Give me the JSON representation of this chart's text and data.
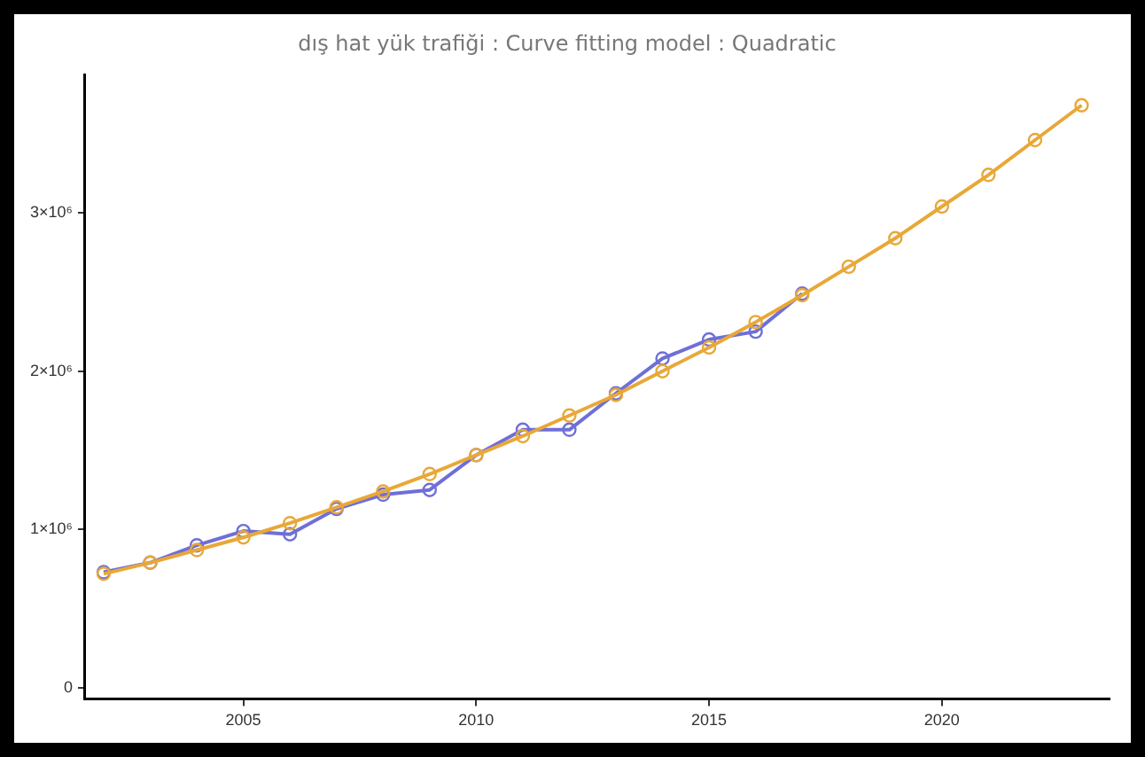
{
  "chart_data": {
    "type": "line",
    "title": "dış hat yük trafiği : Curve fitting model : Quadratic",
    "xlim": [
      2001.6,
      2023.6
    ],
    "xticks": [
      2005,
      2010,
      2015,
      2020
    ],
    "ylim": [
      -70000,
      3870000
    ],
    "yticks": [
      {
        "value": 0,
        "label": "0"
      },
      {
        "value": 1000000,
        "label": "1×10⁶"
      },
      {
        "value": 2000000,
        "label": "2×10⁶"
      },
      {
        "value": 3000000,
        "label": "3×10⁶"
      }
    ],
    "grid": false,
    "legend": false,
    "marker": "circle",
    "line_style": "solid",
    "series": [
      {
        "color": "#6f6fd8",
        "x": [
          2002,
          2003,
          2004,
          2005,
          2006,
          2007,
          2008,
          2009,
          2010,
          2011,
          2012,
          2013,
          2014,
          2015,
          2016,
          2017
        ],
        "values": [
          730000,
          790000,
          900000,
          990000,
          970000,
          1130000,
          1220000,
          1250000,
          1470000,
          1630000,
          1630000,
          1860000,
          2080000,
          2200000,
          2250000,
          2490000
        ]
      },
      {
        "color": "#e8a838",
        "x": [
          2002,
          2003,
          2004,
          2005,
          2006,
          2007,
          2008,
          2009,
          2010,
          2011,
          2012,
          2013,
          2014,
          2015,
          2016,
          2017,
          2018,
          2019,
          2020,
          2021,
          2022,
          2023
        ],
        "values": [
          720000,
          790000,
          870000,
          950000,
          1040000,
          1140000,
          1240000,
          1350000,
          1470000,
          1590000,
          1720000,
          1850000,
          2000000,
          2150000,
          2310000,
          2480000,
          2660000,
          2840000,
          3040000,
          3240000,
          3460000,
          3680000
        ]
      }
    ]
  }
}
